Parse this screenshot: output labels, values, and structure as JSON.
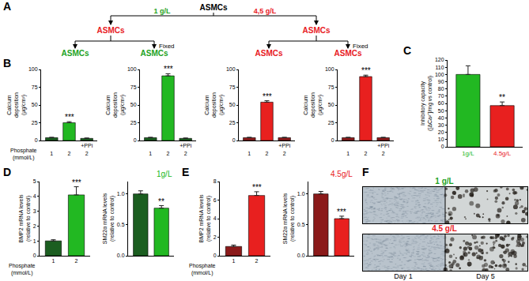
{
  "panel_labels": [
    "A",
    "B",
    "C",
    "D",
    "E",
    "F"
  ],
  "diagram": {
    "root": "ASMCs",
    "branches": [
      {
        "label": "1 g/L",
        "label_color": "#1fa31f",
        "node": "ASMCs",
        "node_color": "#e8201f",
        "children": [
          {
            "text": "ASMCs",
            "color": "#1fa31f"
          },
          {
            "text": "ASMCs",
            "color": "#1fa31f",
            "note": "Fixed"
          }
        ]
      },
      {
        "label": "4,5 g/L",
        "label_color": "#e8201f",
        "node": "ASMCs",
        "node_color": "#e8201f",
        "children": [
          {
            "text": "ASMCs",
            "color": "#e8201f"
          },
          {
            "text": "ASMCs",
            "color": "#e8201f",
            "note": "Fixed"
          }
        ]
      }
    ]
  },
  "chart_data": [
    {
      "type": "bar",
      "categories": [
        "1",
        "2",
        "+PPi\n2"
      ],
      "values": [
        4,
        25,
        3
      ],
      "errors": [
        0.5,
        1.5,
        0.5
      ],
      "colors": [
        "#1b5e20",
        "#22b822",
        "#1b5e20"
      ],
      "ylabel": "Calcium\ndeposition\n(µg/cm²)",
      "xlabel": "Phosphate\n(mmol/L)",
      "ylim": [
        0,
        100
      ],
      "yticks": [
        0,
        25,
        50,
        75,
        100
      ],
      "annotations": [
        {
          "x": 1,
          "text": "***"
        }
      ]
    },
    {
      "type": "bar",
      "categories": [
        "1",
        "2",
        "+PPi\n2"
      ],
      "values": [
        4,
        91,
        3
      ],
      "errors": [
        0.5,
        3,
        0.5
      ],
      "colors": [
        "#1b5e20",
        "#22b822",
        "#1b5e20"
      ],
      "ylabel": "Calcium\ndeposition\n(µg/cm²)",
      "ylim": [
        0,
        100
      ],
      "yticks": [
        0,
        25,
        50,
        75,
        100
      ],
      "annotations": [
        {
          "x": 1,
          "text": "***"
        }
      ]
    },
    {
      "type": "bar",
      "categories": [
        "1",
        "2",
        "+PPi\n2"
      ],
      "values": [
        4,
        54,
        4
      ],
      "errors": [
        0.5,
        2,
        0.5
      ],
      "colors": [
        "#8b1a1a",
        "#e8201f",
        "#8b1a1a"
      ],
      "ylabel": "Calcium\ndeposition\n(µg/cm²)",
      "ylim": [
        0,
        100
      ],
      "yticks": [
        0,
        25,
        50,
        75,
        100
      ],
      "annotations": [
        {
          "x": 1,
          "text": "***"
        }
      ]
    },
    {
      "type": "bar",
      "categories": [
        "1",
        "2",
        "+PPi\n2"
      ],
      "values": [
        4,
        90,
        4
      ],
      "errors": [
        0.5,
        2,
        0.5
      ],
      "colors": [
        "#8b1a1a",
        "#e8201f",
        "#8b1a1a"
      ],
      "ylabel": "Calcium\ndeposition\n(µg/cm²)",
      "ylim": [
        0,
        100
      ],
      "yticks": [
        0,
        25,
        50,
        75,
        100
      ],
      "annotations": [
        {
          "x": 1,
          "text": "***"
        }
      ]
    },
    {
      "type": "bar",
      "categories": [
        "1g/L",
        "4.5g/L"
      ],
      "values": [
        100,
        57
      ],
      "errors": [
        12,
        5
      ],
      "colors": [
        "#22b822",
        "#e8201f"
      ],
      "ylabel": "Inhibitory capacity\n([ΔCa²⁺]/mg vs control)",
      "ylim": [
        0,
        120
      ],
      "yticks": [
        0,
        10,
        20,
        30,
        40,
        50,
        60,
        70,
        80,
        90,
        100,
        110,
        120
      ],
      "annotations": [
        {
          "x": 1,
          "text": "**"
        }
      ]
    },
    {
      "type": "bar",
      "categories": [
        "1",
        "2"
      ],
      "values": [
        1,
        4.1
      ],
      "errors": [
        0.08,
        0.55
      ],
      "colors": [
        "#1b5e20",
        "#22b822"
      ],
      "ylabel": "BMP2 mRNA levels\n(relative to control)",
      "xlabel": "Phosphate\n(mmol/L)",
      "ylim": [
        0,
        5
      ],
      "yticks": [
        0,
        1,
        2,
        3,
        4,
        5
      ],
      "annotations": [
        {
          "x": 1,
          "text": "***"
        }
      ]
    },
    {
      "type": "bar",
      "title": "1g/L",
      "categories": [
        null,
        null
      ],
      "values": [
        1.0,
        0.77
      ],
      "errors": [
        0.05,
        0.04
      ],
      "colors": [
        "#1b5e20",
        "#22b822"
      ],
      "ylabel": "SM22α mRNA levels\n(relative to control)",
      "ylim": [
        0,
        1.2
      ],
      "yticks": [
        {
          "value": 0,
          "label": "0.0"
        },
        {
          "value": 0.5,
          "label": "0.5"
        },
        {
          "value": 1,
          "label": "1.0"
        }
      ],
      "annotations": [
        {
          "x": 1,
          "text": "**"
        }
      ]
    },
    {
      "type": "bar",
      "categories": [
        "1",
        "2"
      ],
      "values": [
        1,
        6.5
      ],
      "errors": [
        0.15,
        0.4
      ],
      "colors": [
        "#8b1a1a",
        "#e8201f"
      ],
      "ylabel": "BMP2 mRNA levels\n(relative to control)",
      "xlabel": "Phosphate\n(mmol/L)",
      "ylim": [
        0,
        8
      ],
      "yticks": [
        0,
        2,
        4,
        6,
        8
      ],
      "annotations": [
        {
          "x": 1,
          "text": "***"
        }
      ]
    },
    {
      "type": "bar",
      "title": "4.5g/L",
      "categories": [
        null,
        null
      ],
      "values": [
        1.0,
        0.6
      ],
      "errors": [
        0.04,
        0.04
      ],
      "colors": [
        "#8b1a1a",
        "#e8201f"
      ],
      "ylabel": "SM22α mRNA levels\n(relative to control)",
      "ylim": [
        0,
        1.2
      ],
      "yticks": [
        {
          "value": 0,
          "label": "0.0"
        },
        {
          "value": 0.5,
          "label": "0.5"
        },
        {
          "value": 1,
          "label": "1.0"
        }
      ],
      "annotations": [
        {
          "x": 1,
          "text": "***"
        }
      ]
    }
  ],
  "images": {
    "rows": [
      {
        "label": "1 g/L",
        "color": "#1fa31f"
      },
      {
        "label": "4.5 g/L",
        "color": "#e8201f"
      }
    ],
    "columns": [
      "Day 1",
      "Day 5"
    ]
  }
}
